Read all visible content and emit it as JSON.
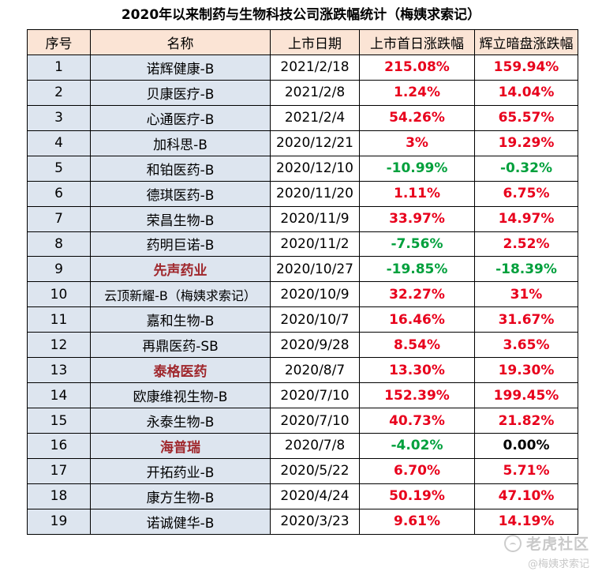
{
  "title": "2020年以来制药与生物科技公司涨跌幅统计（梅姨求索记）",
  "colors": {
    "up": "#e8001c",
    "down": "#00a03c",
    "flat": "#000000",
    "highlight_name": "#a0282d",
    "header_bg": "#fbe4d5",
    "name_bg": "#dde5ef"
  },
  "headers": [
    "序号",
    "名称",
    "上市日期",
    "上市首日涨跌幅",
    "辉立暗盘涨跌幅"
  ],
  "rows": [
    {
      "idx": "1",
      "name": "诺辉健康-B",
      "date": "2021/2/18",
      "first_day": "215.08%",
      "dark_pool": "159.94%",
      "hl": false
    },
    {
      "idx": "2",
      "name": "贝康医疗-B",
      "date": "2021/2/8",
      "first_day": "1.24%",
      "dark_pool": "14.04%",
      "hl": false
    },
    {
      "idx": "3",
      "name": "心通医疗-B",
      "date": "2021/2/4",
      "first_day": "54.26%",
      "dark_pool": "65.57%",
      "hl": false
    },
    {
      "idx": "4",
      "name": "加科思-B",
      "date": "2020/12/21",
      "first_day": "3%",
      "dark_pool": "19.29%",
      "hl": false
    },
    {
      "idx": "5",
      "name": "和铂医药-B",
      "date": "2020/12/10",
      "first_day": "-10.99%",
      "dark_pool": "-0.32%",
      "hl": false
    },
    {
      "idx": "6",
      "name": "德琪医药-B",
      "date": "2020/11/20",
      "first_day": "1.11%",
      "dark_pool": "6.75%",
      "hl": false
    },
    {
      "idx": "7",
      "name": "荣昌生物-B",
      "date": "2020/11/9",
      "first_day": "33.97%",
      "dark_pool": "14.97%",
      "hl": false
    },
    {
      "idx": "8",
      "name": "药明巨诺-B",
      "date": "2020/11/2",
      "first_day": "-7.56%",
      "dark_pool": "2.52%",
      "hl": false
    },
    {
      "idx": "9",
      "name": "先声药业",
      "date": "2020/10/27",
      "first_day": "-19.85%",
      "dark_pool": "-18.39%",
      "hl": true
    },
    {
      "idx": "10",
      "name": "云顶新耀-B（梅姨求索记）",
      "date": "2020/10/9",
      "first_day": "32.27%",
      "dark_pool": "31%",
      "hl": false
    },
    {
      "idx": "11",
      "name": "嘉和生物-B",
      "date": "2020/10/7",
      "first_day": "16.46%",
      "dark_pool": "31.67%",
      "hl": false
    },
    {
      "idx": "12",
      "name": "再鼎医药-SB",
      "date": "2020/9/28",
      "first_day": "8.54%",
      "dark_pool": "3.65%",
      "hl": false
    },
    {
      "idx": "13",
      "name": "泰格医药",
      "date": "2020/8/7",
      "first_day": "13.30%",
      "dark_pool": "19.30%",
      "hl": true
    },
    {
      "idx": "14",
      "name": "欧康维视生物-B",
      "date": "2020/7/10",
      "first_day": "152.39%",
      "dark_pool": "199.45%",
      "hl": false
    },
    {
      "idx": "15",
      "name": "永泰生物-B",
      "date": "2020/7/10",
      "first_day": "40.73%",
      "dark_pool": "21.82%",
      "hl": false
    },
    {
      "idx": "16",
      "name": "海普瑞",
      "date": "2020/7/8",
      "first_day": "-4.02%",
      "dark_pool": "0.00%",
      "hl": true
    },
    {
      "idx": "17",
      "name": "开拓药业-B",
      "date": "2020/5/22",
      "first_day": "6.70%",
      "dark_pool": "5.71%",
      "hl": false
    },
    {
      "idx": "18",
      "name": "康方生物-B",
      "date": "2020/4/24",
      "first_day": "50.19%",
      "dark_pool": "47.10%",
      "hl": false
    },
    {
      "idx": "19",
      "name": "诺诚健华-B",
      "date": "2020/3/23",
      "first_day": "9.61%",
      "dark_pool": "14.19%",
      "hl": false
    }
  ],
  "watermark": {
    "logo_icon": "tiger-community-logo-icon",
    "brand": "老虎社区",
    "user": "@梅姨求索记"
  }
}
